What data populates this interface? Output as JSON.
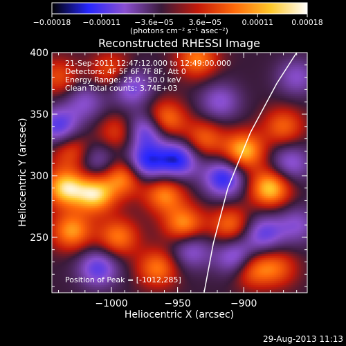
{
  "chart_data": {
    "type": "heatmap",
    "title": "Reconstructed RHESSI Image",
    "xlabel": "Heliocentric X (arcsec)",
    "ylabel": "Heliocentric Y (arcsec)",
    "xlim": [
      -1045,
      -852
    ],
    "ylim": [
      205,
      400
    ],
    "x_ticks": [
      {
        "value": -1000,
        "label": "−1000"
      },
      {
        "value": -950,
        "label": "−950"
      },
      {
        "value": -900,
        "label": "−900"
      }
    ],
    "y_ticks": [
      {
        "value": 250,
        "label": "250"
      },
      {
        "value": 300,
        "label": "300"
      },
      {
        "value": 350,
        "label": "350"
      },
      {
        "value": 400,
        "label": "400"
      }
    ],
    "colorbar": {
      "min": -0.00018,
      "max": 0.00018,
      "ticks": [
        {
          "value": -0.00018,
          "label": "−0.00018"
        },
        {
          "value": -0.00011,
          "label": "−0.00011"
        },
        {
          "value": -3.6e-05,
          "label": "−3.6e−05"
        },
        {
          "value": 3.6e-05,
          "label": "3.6e−05"
        },
        {
          "value": 0.00011,
          "label": "0.00011"
        },
        {
          "value": 0.00018,
          "label": "0.00018"
        }
      ],
      "unit_label": "(photons cm⁻² s⁻¹ asec⁻²)",
      "colormap": [
        "#000000",
        "#2626ff",
        "#8a4fd0",
        "#3a1a3a",
        "#c41a0a",
        "#ff6a0a",
        "#ffc82a",
        "#ffffff"
      ]
    },
    "annotations": [
      "21-Sep-2011 12:47:12.000 to 12:49:00.000",
      "Detectors: 4F 5F 6F 7F 8F, Att 0",
      "Energy Range: 25.0 - 50.0 keV",
      "Clean    Total counts: 3.74E+03"
    ],
    "peak_label": "Position of Peak = [-1012,285]",
    "peak": {
      "x": -1012,
      "y": 285
    },
    "limb_curve": {
      "color": "#ffffff",
      "points": [
        [
          -930,
          205
        ],
        [
          -923,
          245
        ],
        [
          -912,
          290
        ],
        [
          -895,
          335
        ],
        [
          -875,
          375
        ],
        [
          -860,
          400
        ]
      ]
    },
    "blobs": [
      {
        "x": -1035,
        "y": 290,
        "v": 1.0
      },
      {
        "x": -1012,
        "y": 285,
        "v": 1.0
      },
      {
        "x": -990,
        "y": 300,
        "v": 0.85
      },
      {
        "x": -960,
        "y": 285,
        "v": 0.75
      },
      {
        "x": -1030,
        "y": 255,
        "v": 0.8
      },
      {
        "x": -995,
        "y": 250,
        "v": 0.7
      },
      {
        "x": -965,
        "y": 225,
        "v": 0.7
      },
      {
        "x": -945,
        "y": 260,
        "v": 0.8
      },
      {
        "x": -1030,
        "y": 320,
        "v": 0.55
      },
      {
        "x": -995,
        "y": 335,
        "v": 0.5
      },
      {
        "x": -960,
        "y": 345,
        "v": 0.85
      },
      {
        "x": -930,
        "y": 330,
        "v": 0.6
      },
      {
        "x": -900,
        "y": 320,
        "v": 0.95
      },
      {
        "x": -880,
        "y": 290,
        "v": 1.0
      },
      {
        "x": -870,
        "y": 340,
        "v": 0.6
      },
      {
        "x": -895,
        "y": 225,
        "v": 0.75
      },
      {
        "x": -935,
        "y": 395,
        "v": 0.7
      },
      {
        "x": -1000,
        "y": 385,
        "v": 0.55
      },
      {
        "x": -875,
        "y": 225,
        "v": 0.55
      },
      {
        "x": -910,
        "y": 260,
        "v": 0.65
      },
      {
        "x": -1040,
        "y": 380,
        "v": 0.5
      },
      {
        "x": -975,
        "y": 310,
        "v": -1.0
      },
      {
        "x": -950,
        "y": 313,
        "v": -1.0
      },
      {
        "x": -973,
        "y": 337,
        "v": -0.9
      },
      {
        "x": -915,
        "y": 298,
        "v": -0.95
      },
      {
        "x": -905,
        "y": 233,
        "v": -0.85
      },
      {
        "x": -1040,
        "y": 340,
        "v": -0.8
      },
      {
        "x": -1010,
        "y": 225,
        "v": -0.75
      },
      {
        "x": -985,
        "y": 372,
        "v": -0.7
      },
      {
        "x": -885,
        "y": 253,
        "v": -0.7
      },
      {
        "x": -865,
        "y": 310,
        "v": -0.6
      },
      {
        "x": -940,
        "y": 240,
        "v": -0.6
      },
      {
        "x": -1010,
        "y": 312,
        "v": -0.5
      },
      {
        "x": -918,
        "y": 360,
        "v": -0.55
      },
      {
        "x": -1020,
        "y": 360,
        "v": -0.5
      },
      {
        "x": -860,
        "y": 380,
        "v": -0.5
      },
      {
        "x": -860,
        "y": 260,
        "v": -0.5
      }
    ]
  },
  "footer": {
    "timestamp": "29-Aug-2013 11:13"
  }
}
